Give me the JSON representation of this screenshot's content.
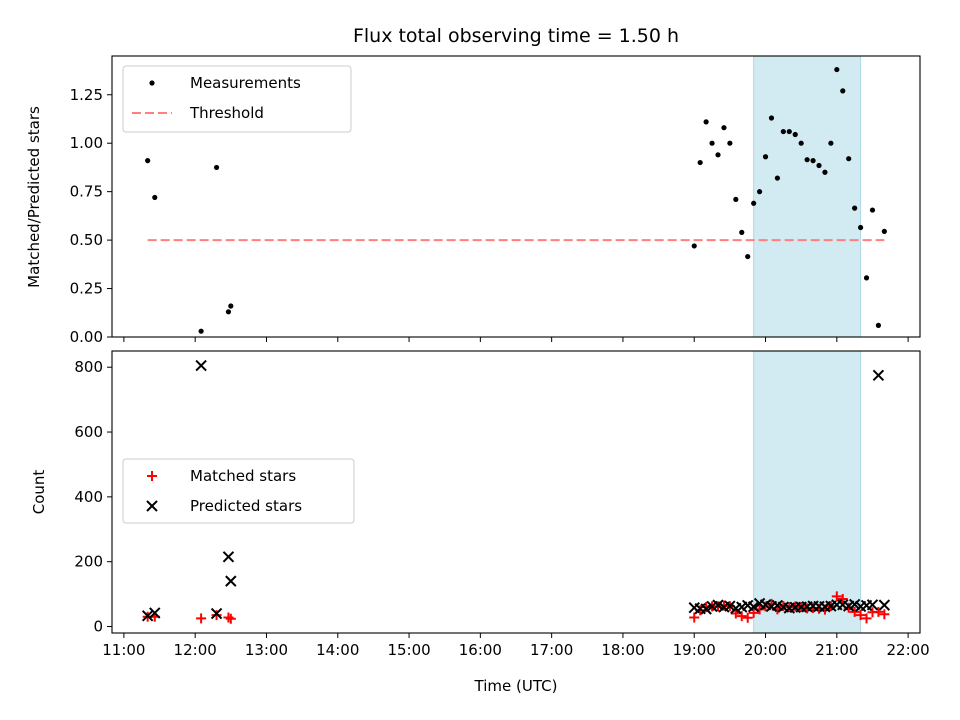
{
  "chart_data": [
    {
      "type": "scatter",
      "title": "Flux total observing time = 1.50 h",
      "ylabel": "Matched/Predicted stars",
      "xlabel": "",
      "xlim": [
        "10:50",
        "22:10"
      ],
      "ylim": [
        0,
        1.45
      ],
      "x_ticks": [
        "11:00",
        "12:00",
        "13:00",
        "14:00",
        "15:00",
        "16:00",
        "17:00",
        "18:00",
        "19:00",
        "20:00",
        "21:00",
        "22:00"
      ],
      "y_ticks": [
        "0.00",
        "0.25",
        "0.50",
        "0.75",
        "1.00",
        "1.25"
      ],
      "legend_position": "upper left",
      "shaded_span": {
        "start": "19:50",
        "end": "21:20",
        "color": "#add8e6"
      },
      "series": [
        {
          "name": "Measurements",
          "marker": "dot",
          "color": "#000000",
          "points": [
            [
              "11:20",
              0.91
            ],
            [
              "11:26",
              0.72
            ],
            [
              "12:05",
              0.03
            ],
            [
              "12:18",
              0.875
            ],
            [
              "12:28",
              0.13
            ],
            [
              "12:30",
              0.16
            ],
            [
              "19:00",
              0.47
            ],
            [
              "19:05",
              0.9
            ],
            [
              "19:10",
              1.11
            ],
            [
              "19:15",
              1.0
            ],
            [
              "19:20",
              0.94
            ],
            [
              "19:25",
              1.08
            ],
            [
              "19:30",
              1.0
            ],
            [
              "19:35",
              0.71
            ],
            [
              "19:40",
              0.54
            ],
            [
              "19:45",
              0.415
            ],
            [
              "19:50",
              0.69
            ],
            [
              "19:55",
              0.75
            ],
            [
              "20:00",
              0.93
            ],
            [
              "20:05",
              1.13
            ],
            [
              "20:10",
              0.82
            ],
            [
              "20:15",
              1.06
            ],
            [
              "20:20",
              1.06
            ],
            [
              "20:25",
              1.045
            ],
            [
              "20:30",
              1.0
            ],
            [
              "20:35",
              0.915
            ],
            [
              "20:40",
              0.91
            ],
            [
              "20:45",
              0.885
            ],
            [
              "20:50",
              0.85
            ],
            [
              "20:55",
              1.0
            ],
            [
              "21:00",
              1.38
            ],
            [
              "21:05",
              1.27
            ],
            [
              "21:10",
              0.92
            ],
            [
              "21:15",
              0.665
            ],
            [
              "21:20",
              0.565
            ],
            [
              "21:25",
              0.305
            ],
            [
              "21:30",
              0.655
            ],
            [
              "21:35",
              0.06
            ],
            [
              "21:40",
              0.545
            ]
          ]
        },
        {
          "name": "Threshold",
          "marker": "dashed-line",
          "color": "#ff7f7f",
          "points": [
            [
              "11:20",
              0.5
            ],
            [
              "21:40",
              0.5
            ]
          ]
        }
      ]
    },
    {
      "type": "scatter",
      "title": "",
      "ylabel": "Count",
      "xlabel": "Time (UTC)",
      "xlim": [
        "10:50",
        "22:10"
      ],
      "ylim": [
        -20,
        850
      ],
      "x_ticks": [
        "11:00",
        "12:00",
        "13:00",
        "14:00",
        "15:00",
        "16:00",
        "17:00",
        "18:00",
        "19:00",
        "20:00",
        "21:00",
        "22:00"
      ],
      "y_ticks": [
        "0",
        "200",
        "400",
        "600",
        "800"
      ],
      "legend_position": "center left",
      "shaded_span": {
        "start": "19:50",
        "end": "21:20",
        "color": "#add8e6"
      },
      "series": [
        {
          "name": "Matched stars",
          "marker": "plus",
          "color": "#ff0000",
          "points": [
            [
              "11:20",
              30
            ],
            [
              "11:26",
              30
            ],
            [
              "12:05",
              25
            ],
            [
              "12:18",
              35
            ],
            [
              "12:28",
              28
            ],
            [
              "12:30",
              24
            ],
            [
              "19:00",
              28
            ],
            [
              "19:05",
              50
            ],
            [
              "19:10",
              60
            ],
            [
              "19:15",
              62
            ],
            [
              "19:20",
              62
            ],
            [
              "19:25",
              65
            ],
            [
              "19:30",
              63
            ],
            [
              "19:35",
              40
            ],
            [
              "19:40",
              32
            ],
            [
              "19:45",
              27
            ],
            [
              "19:50",
              42
            ],
            [
              "19:55",
              53
            ],
            [
              "20:00",
              62
            ],
            [
              "20:05",
              70
            ],
            [
              "20:10",
              53
            ],
            [
              "20:15",
              63
            ],
            [
              "20:20",
              60
            ],
            [
              "20:25",
              62
            ],
            [
              "20:30",
              60
            ],
            [
              "20:35",
              56
            ],
            [
              "20:40",
              57
            ],
            [
              "20:45",
              55
            ],
            [
              "20:50",
              52
            ],
            [
              "20:55",
              63
            ],
            [
              "21:00",
              93
            ],
            [
              "21:05",
              85
            ],
            [
              "21:10",
              58
            ],
            [
              "21:15",
              45
            ],
            [
              "21:20",
              35
            ],
            [
              "21:25",
              25
            ],
            [
              "21:30",
              44
            ],
            [
              "21:35",
              45
            ],
            [
              "21:40",
              38
            ]
          ]
        },
        {
          "name": "Predicted stars",
          "marker": "x",
          "color": "#000000",
          "points": [
            [
              "11:20",
              33
            ],
            [
              "11:26",
              42
            ],
            [
              "12:05",
              805
            ],
            [
              "12:18",
              40
            ],
            [
              "12:28",
              215
            ],
            [
              "12:30",
              140
            ],
            [
              "19:00",
              58
            ],
            [
              "19:05",
              55
            ],
            [
              "19:10",
              54
            ],
            [
              "19:15",
              62
            ],
            [
              "19:20",
              66
            ],
            [
              "19:25",
              60
            ],
            [
              "19:30",
              63
            ],
            [
              "19:35",
              56
            ],
            [
              "19:40",
              60
            ],
            [
              "19:45",
              65
            ],
            [
              "19:50",
              61
            ],
            [
              "19:55",
              71
            ],
            [
              "20:00",
              67
            ],
            [
              "20:05",
              62
            ],
            [
              "20:10",
              65
            ],
            [
              "20:15",
              60
            ],
            [
              "20:20",
              57
            ],
            [
              "20:25",
              59
            ],
            [
              "20:30",
              60
            ],
            [
              "20:35",
              61
            ],
            [
              "20:40",
              63
            ],
            [
              "20:45",
              62
            ],
            [
              "20:50",
              61
            ],
            [
              "20:55",
              63
            ],
            [
              "21:00",
              67
            ],
            [
              "21:05",
              67
            ],
            [
              "21:10",
              63
            ],
            [
              "21:15",
              68
            ],
            [
              "21:20",
              62
            ],
            [
              "21:25",
              65
            ],
            [
              "21:30",
              67
            ],
            [
              "21:35",
              775
            ],
            [
              "21:40",
              66
            ]
          ]
        }
      ]
    }
  ]
}
